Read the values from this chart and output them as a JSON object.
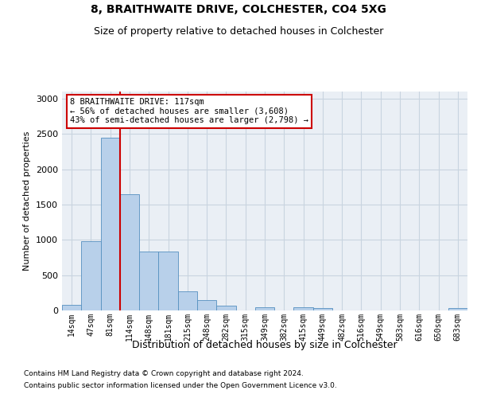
{
  "title1": "8, BRAITHWAITE DRIVE, COLCHESTER, CO4 5XG",
  "title2": "Size of property relative to detached houses in Colchester",
  "xlabel": "Distribution of detached houses by size in Colchester",
  "ylabel": "Number of detached properties",
  "footnote1": "Contains HM Land Registry data © Crown copyright and database right 2024.",
  "footnote2": "Contains public sector information licensed under the Open Government Licence v3.0.",
  "bin_labels": [
    "14sqm",
    "47sqm",
    "81sqm",
    "114sqm",
    "148sqm",
    "181sqm",
    "215sqm",
    "248sqm",
    "282sqm",
    "315sqm",
    "349sqm",
    "382sqm",
    "415sqm",
    "449sqm",
    "482sqm",
    "516sqm",
    "549sqm",
    "583sqm",
    "616sqm",
    "650sqm",
    "683sqm"
  ],
  "bar_heights": [
    75,
    985,
    2450,
    1650,
    830,
    830,
    265,
    145,
    70,
    0,
    50,
    0,
    50,
    30,
    0,
    0,
    0,
    0,
    0,
    0,
    30
  ],
  "bar_color": "#b8d0ea",
  "bar_edge_color": "#5590c0",
  "property_line_color": "#cc0000",
  "property_line_bin_idx": 2,
  "annotation_text": "8 BRAITHWAITE DRIVE: 117sqm\n← 56% of detached houses are smaller (3,608)\n43% of semi-detached houses are larger (2,798) →",
  "annotation_box_facecolor": "#ffffff",
  "annotation_box_edgecolor": "#cc0000",
  "ylim": [
    0,
    3100
  ],
  "yticks": [
    0,
    500,
    1000,
    1500,
    2000,
    2500,
    3000
  ],
  "grid_color": "#c8d4e0",
  "bg_color": "#eaeff5",
  "title1_fontsize": 10,
  "title2_fontsize": 9,
  "ylabel_fontsize": 8,
  "xlabel_fontsize": 9,
  "tick_fontsize": 7,
  "footnote_fontsize": 6.5
}
